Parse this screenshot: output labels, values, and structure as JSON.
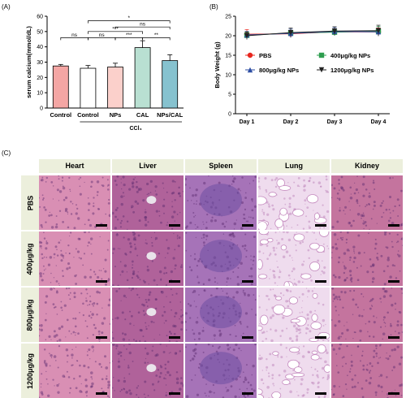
{
  "panels": {
    "a": "(A)",
    "b": "(B)",
    "c": "(C)"
  },
  "chart_data": [
    {
      "type": "bar",
      "ylabel": "serum calcium(mmol/dL)",
      "ylim": [
        0,
        60
      ],
      "yticks": [
        "0",
        "10",
        "20",
        "30",
        "40",
        "50",
        "60"
      ],
      "categories": [
        "Control",
        "Control",
        "NPs",
        "CAL",
        "NPs/CAL"
      ],
      "group_label": "CCl₄",
      "values": [
        27.5,
        26.0,
        26.8,
        39.5,
        31.0
      ],
      "errors": [
        1.0,
        1.8,
        2.5,
        4.5,
        3.8
      ],
      "colors": [
        "#f4a6a4",
        "#ffffff",
        "#fbd0cb",
        "#b9e0d2",
        "#86c2cf"
      ],
      "significance": [
        {
          "label": "ns",
          "from": 0,
          "to": 1,
          "y": 46.0
        },
        {
          "label": "ns",
          "from": 1,
          "to": 2,
          "y": 46.0
        },
        {
          "label": "***",
          "from": 1,
          "to": 3,
          "y": 50.0
        },
        {
          "label": "***",
          "from": 2,
          "to": 3,
          "y": 46.0
        },
        {
          "label": "**",
          "from": 3,
          "to": 4,
          "y": 46.0
        },
        {
          "label": "ns",
          "from": 2,
          "to": 4,
          "y": 53.0
        },
        {
          "label": "*",
          "from": 1,
          "to": 4,
          "y": 57.0
        }
      ]
    },
    {
      "type": "line",
      "ylabel": "Body Weight (g)",
      "ylim": [
        0,
        25
      ],
      "yticks": [
        "0",
        "5",
        "10",
        "15",
        "20",
        "25"
      ],
      "categories": [
        "Day 1",
        "Day 2",
        "Day 3",
        "Day 4"
      ],
      "series": [
        {
          "name": "PBS",
          "color": "#e8261e",
          "marker": "circle",
          "values": [
            20.4,
            20.5,
            21.0,
            21.0
          ],
          "errors": [
            1.2,
            0.9,
            0.8,
            1.0
          ]
        },
        {
          "name": "400μg/kg NPs",
          "color": "#2e9e4f",
          "marker": "square",
          "values": [
            20.1,
            20.7,
            20.9,
            21.2
          ],
          "errors": [
            0.8,
            1.0,
            0.9,
            1.2
          ]
        },
        {
          "name": "800μg/kg NPs",
          "color": "#2d4ea3",
          "marker": "triangle",
          "values": [
            20.2,
            20.6,
            21.1,
            21.0
          ],
          "errors": [
            0.9,
            1.1,
            1.0,
            0.9
          ]
        },
        {
          "name": "1200μg/kg NPs",
          "color": "#222222",
          "marker": "triangle-down",
          "values": [
            20.0,
            20.8,
            21.2,
            21.3
          ],
          "errors": [
            1.0,
            1.2,
            1.1,
            1.4
          ]
        }
      ]
    }
  ],
  "histology": {
    "columns": [
      "Heart",
      "Liver",
      "Spleen",
      "Lung",
      "Kidney"
    ],
    "rows": [
      "PBS",
      "400μg/kg",
      "800μg/kg",
      "1200μg/kg"
    ],
    "tissue_colors": [
      "#d98fb4",
      "#b0629a",
      "#a673b8",
      "#efdcee",
      "#c4749e"
    ]
  }
}
